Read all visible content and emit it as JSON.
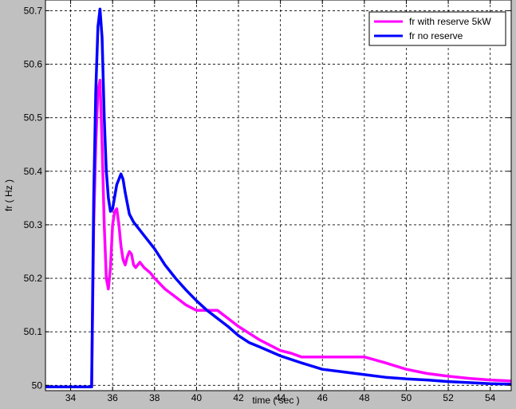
{
  "chart_data": {
    "type": "line",
    "title": "",
    "xlabel": "time ( sec )",
    "ylabel": "fr ( Hz )",
    "xlim": [
      32.8,
      55
    ],
    "ylim": [
      49.99,
      50.72
    ],
    "xticks": [
      34,
      36,
      38,
      40,
      42,
      44,
      46,
      48,
      50,
      52,
      54
    ],
    "yticks": [
      50,
      50.1,
      50.2,
      50.3,
      50.4,
      50.5,
      50.6,
      50.7
    ],
    "xtick_labels": [
      "34",
      "36",
      "38",
      "40",
      "42",
      "44",
      "46",
      "48",
      "50",
      "52",
      "54"
    ],
    "ytick_labels": [
      "50",
      "50.1",
      "50.2",
      "50.3",
      "50.4",
      "50.5",
      "50.6",
      "50.7"
    ],
    "grid": true,
    "legend_position": "top-right",
    "series": [
      {
        "name": "fr with reserve 5kW",
        "color": "#ff00ff",
        "x": [
          32.8,
          35.0,
          35.1,
          35.2,
          35.3,
          35.4,
          35.5,
          35.6,
          35.7,
          35.8,
          35.9,
          36.0,
          36.1,
          36.2,
          36.3,
          36.4,
          36.5,
          36.6,
          36.7,
          36.8,
          36.9,
          37.0,
          37.1,
          37.2,
          37.3,
          37.5,
          37.8,
          38.0,
          38.5,
          39.0,
          39.5,
          40.0,
          40.5,
          41.0,
          41.5,
          42.0,
          43.0,
          44.0,
          44.5,
          45.0,
          46.0,
          47.0,
          48.0,
          49.0,
          50.0,
          51.0,
          52.0,
          53.0,
          54.0,
          55.0
        ],
        "y": [
          49.997,
          49.997,
          50.3,
          50.45,
          50.55,
          50.57,
          50.45,
          50.3,
          50.2,
          50.18,
          50.22,
          50.3,
          50.325,
          50.33,
          50.3,
          50.26,
          50.235,
          50.225,
          50.24,
          50.25,
          50.245,
          50.225,
          50.22,
          50.225,
          50.23,
          50.22,
          50.21,
          50.2,
          50.18,
          50.165,
          50.15,
          50.14,
          50.14,
          50.14,
          50.125,
          50.11,
          50.085,
          50.065,
          50.06,
          50.053,
          50.053,
          50.053,
          50.053,
          50.042,
          50.03,
          50.022,
          50.017,
          50.013,
          50.01,
          50.008
        ]
      },
      {
        "name": "fr no reserve",
        "color": "#0000ff",
        "x": [
          32.8,
          35.0,
          35.1,
          35.2,
          35.3,
          35.4,
          35.5,
          35.6,
          35.7,
          35.8,
          35.9,
          36.0,
          36.2,
          36.4,
          36.5,
          36.6,
          36.8,
          37.0,
          37.5,
          38.0,
          38.5,
          39.0,
          39.5,
          40.0,
          40.5,
          41.0,
          41.5,
          42.0,
          42.5,
          43.0,
          44.0,
          45.0,
          46.0,
          47.0,
          48.0,
          49.0,
          50.0,
          51.0,
          52.0,
          53.0,
          54.0,
          55.0
        ],
        "y": [
          49.997,
          49.997,
          50.35,
          50.55,
          50.67,
          50.703,
          50.65,
          50.5,
          50.4,
          50.35,
          50.325,
          50.33,
          50.375,
          50.395,
          50.385,
          50.36,
          50.32,
          50.305,
          50.28,
          50.255,
          50.225,
          50.2,
          50.178,
          50.158,
          50.14,
          50.125,
          50.11,
          50.093,
          50.08,
          50.072,
          50.055,
          50.042,
          50.03,
          50.025,
          50.02,
          50.015,
          50.012,
          50.01,
          50.007,
          50.005,
          50.003,
          50.002
        ]
      }
    ]
  }
}
